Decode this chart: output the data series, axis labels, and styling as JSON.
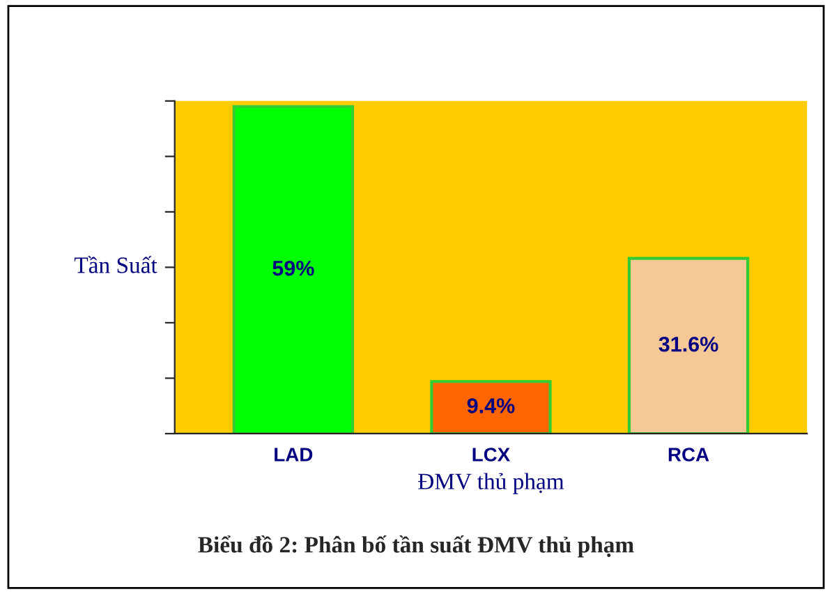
{
  "chart_data": {
    "type": "bar",
    "title": "Biểu đồ 2: Phân bố tần suất ĐMV thủ phạm",
    "xlabel": "ĐMV thủ phạm",
    "ylabel": "Tần Suất",
    "categories": [
      "LAD",
      "LCX",
      "RCA"
    ],
    "values": [
      59,
      9.4,
      31.6
    ],
    "colors": [
      "#00ff00",
      "#ff6600",
      "#f5c896"
    ],
    "value_labels": [
      "59%",
      "9.4%",
      "31.6%"
    ],
    "ylim": [
      0,
      60
    ],
    "yticks": [
      {
        "value": 0,
        "label": null
      },
      {
        "value": 10,
        "label": null
      },
      {
        "value": 20,
        "label": null
      },
      {
        "value": 30,
        "label": null
      },
      {
        "value": 40,
        "label": null
      },
      {
        "value": 50,
        "label": null
      },
      {
        "value": 60,
        "label": null
      }
    ],
    "tick_labels": "x",
    "grid": false,
    "legend": false
  }
}
